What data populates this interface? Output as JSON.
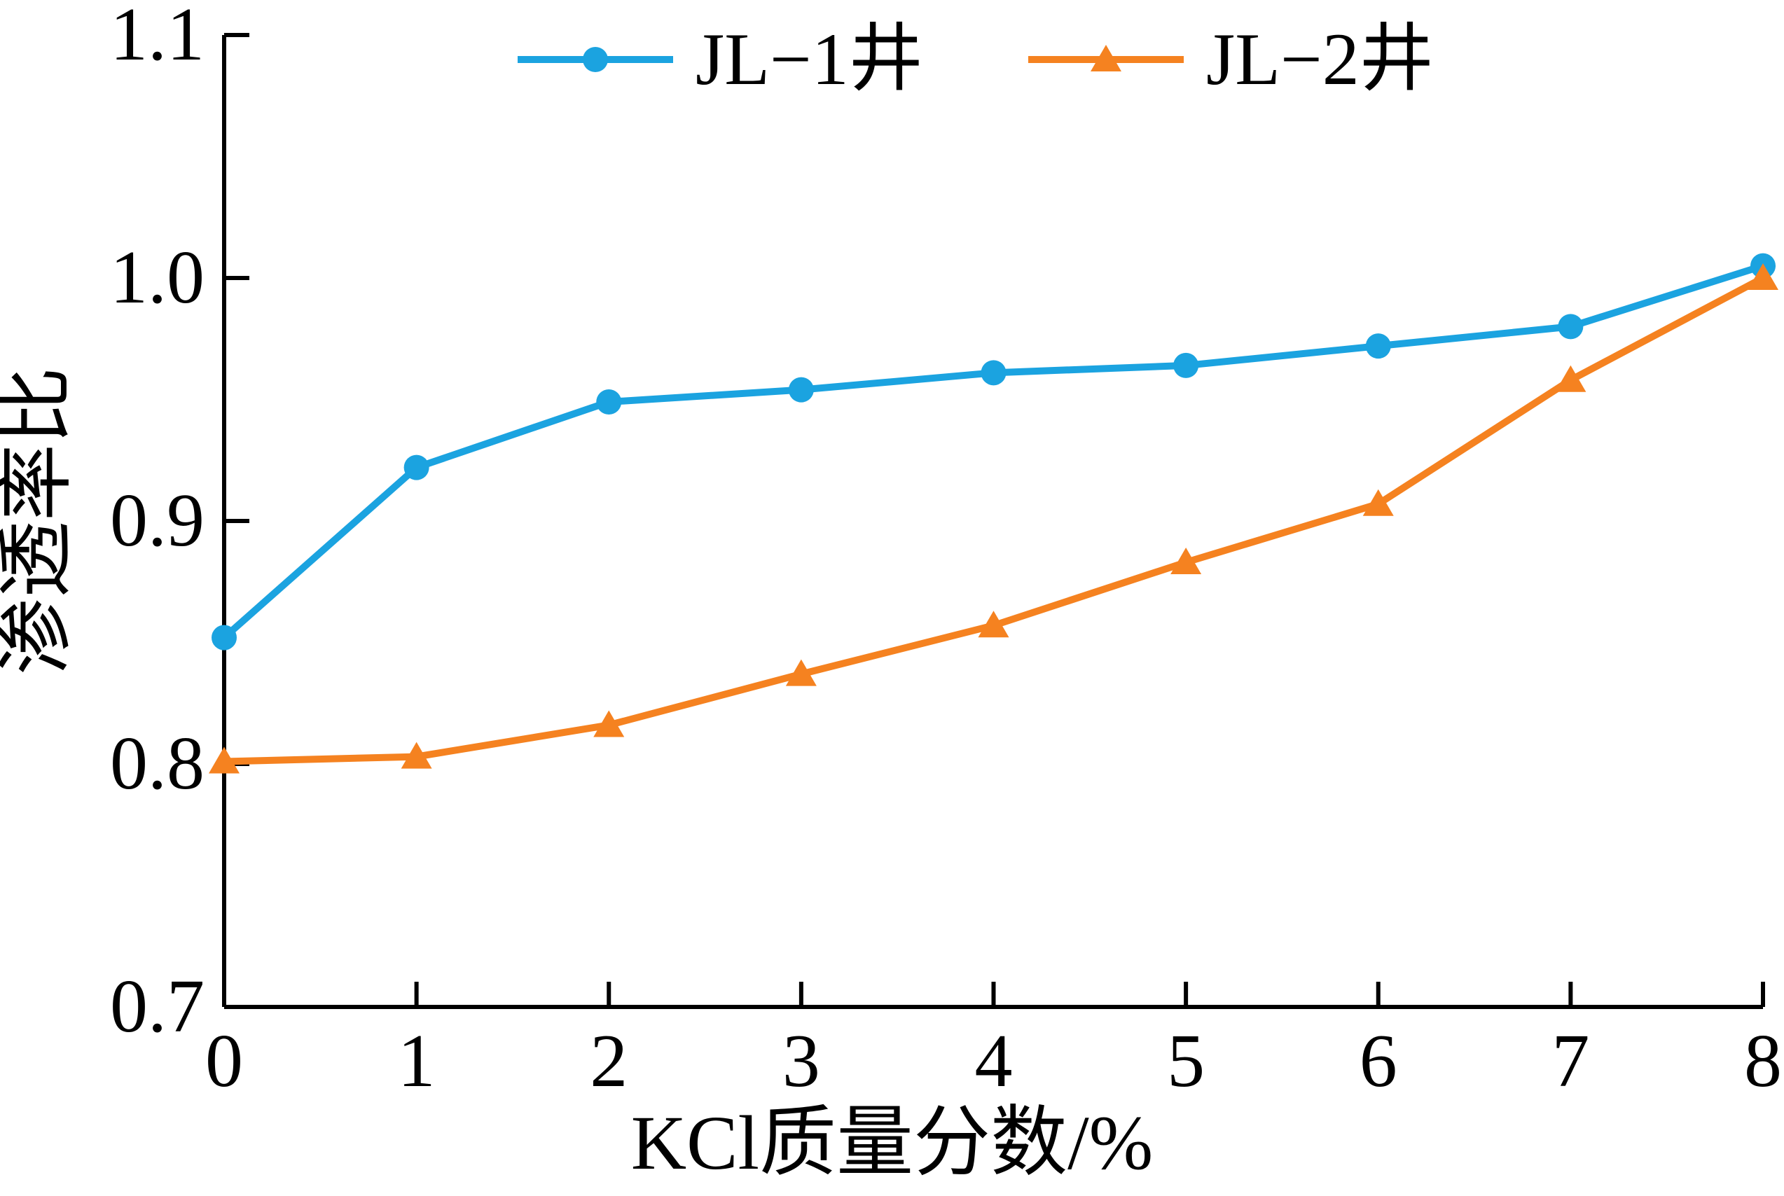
{
  "chart_data": {
    "type": "line",
    "title": "",
    "xlabel": "KCl质量分数/%",
    "ylabel": "渗透率比",
    "xlim": [
      0,
      8
    ],
    "ylim": [
      0.7,
      1.1
    ],
    "xticks": [
      "0",
      "1",
      "2",
      "3",
      "4",
      "5",
      "6",
      "7",
      "8"
    ],
    "yticks": [
      "0.7",
      "0.8",
      "0.9",
      "1.0",
      "1.1"
    ],
    "grid": false,
    "legend_position": "top-center",
    "x": [
      0,
      1,
      2,
      3,
      4,
      5,
      6,
      7,
      8
    ],
    "series": [
      {
        "name": "JL−1井",
        "marker": "circle",
        "color": "#1ba3e0",
        "values": [
          0.852,
          0.922,
          0.949,
          0.954,
          0.961,
          0.964,
          0.972,
          0.98,
          1.005
        ]
      },
      {
        "name": "JL−2井",
        "marker": "triangle",
        "color": "#f58220",
        "values": [
          0.801,
          0.803,
          0.816,
          0.837,
          0.857,
          0.883,
          0.907,
          0.958,
          1.0
        ]
      }
    ],
    "axis_color": "#000000",
    "background": "#ffffff"
  }
}
